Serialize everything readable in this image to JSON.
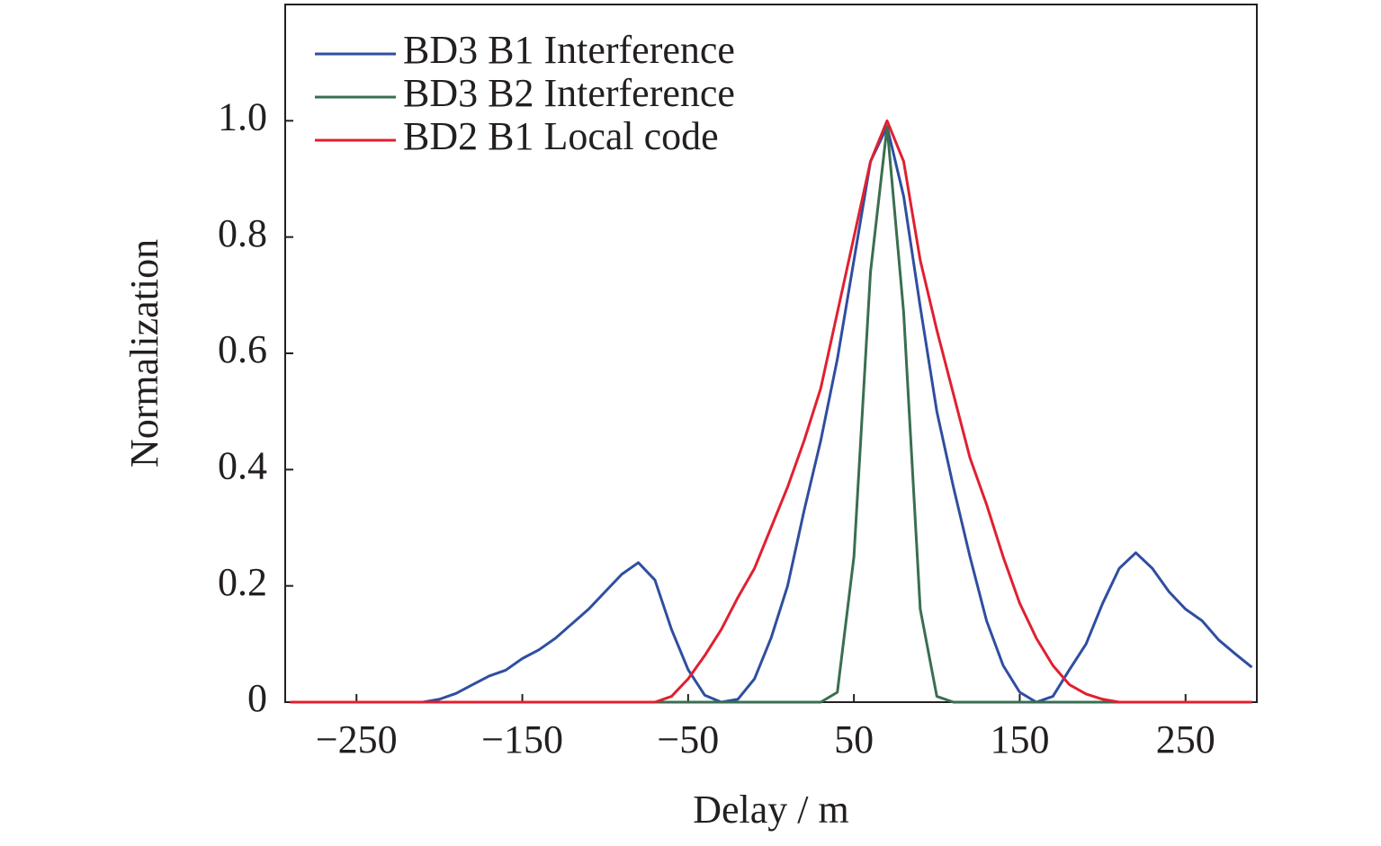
{
  "chart_data": {
    "type": "line",
    "xlabel": "Delay / m",
    "ylabel": "Normalization",
    "x": [
      -290,
      -280,
      -270,
      -260,
      -250,
      -240,
      -230,
      -220,
      -210,
      -200,
      -190,
      -180,
      -170,
      -160,
      -150,
      -140,
      -130,
      -120,
      -110,
      -100,
      -90,
      -80,
      -70,
      -60,
      -50,
      -40,
      -30,
      -20,
      -10,
      0,
      10,
      20,
      30,
      40,
      50,
      60,
      70,
      80,
      90,
      100,
      110,
      120,
      130,
      140,
      150,
      160,
      170,
      180,
      190,
      200,
      210,
      220,
      230,
      240,
      250,
      260,
      270,
      280,
      290
    ],
    "series": [
      {
        "name": "BD3 B1 Interference",
        "color": "#2f4ea0",
        "values": [
          0,
          0,
          0,
          0,
          0,
          0,
          0,
          0,
          0,
          0.005,
          0.015,
          0.03,
          0.045,
          0.055,
          0.075,
          0.09,
          0.11,
          0.135,
          0.16,
          0.19,
          0.22,
          0.24,
          0.21,
          0.125,
          0.056,
          0.012,
          0,
          0.005,
          0.04,
          0.11,
          0.2,
          0.33,
          0.45,
          0.59,
          0.76,
          0.93,
          0.99,
          0.87,
          0.68,
          0.5,
          0.37,
          0.25,
          0.14,
          0.063,
          0.017,
          0,
          0.01,
          0.056,
          0.1,
          0.17,
          0.23,
          0.257,
          0.23,
          0.19,
          0.16,
          0.14,
          0.107,
          0.083,
          0.06
        ]
      },
      {
        "name": "BD3 B2 Interference",
        "color": "#3a6e50",
        "values": [
          0,
          0,
          0,
          0,
          0,
          0,
          0,
          0,
          0,
          0,
          0,
          0,
          0,
          0,
          0,
          0,
          0,
          0,
          0,
          0,
          0,
          0,
          0,
          0,
          0,
          0,
          0,
          0,
          0,
          0,
          0,
          0,
          0,
          0.017,
          0.25,
          0.74,
          0.99,
          0.67,
          0.16,
          0.01,
          0,
          0,
          0,
          0,
          0,
          0,
          0,
          0,
          0,
          0,
          0,
          0,
          0,
          0,
          0,
          0,
          0,
          0,
          0
        ]
      },
      {
        "name": "BD2 B1 Local code",
        "color": "#e02030",
        "values": [
          0,
          0,
          0,
          0,
          0,
          0,
          0,
          0,
          0,
          0,
          0,
          0,
          0,
          0,
          0,
          0,
          0,
          0,
          0,
          0,
          0,
          0,
          0,
          0.01,
          0.04,
          0.08,
          0.125,
          0.18,
          0.23,
          0.3,
          0.37,
          0.45,
          0.54,
          0.67,
          0.8,
          0.93,
          1.0,
          0.93,
          0.76,
          0.64,
          0.53,
          0.42,
          0.34,
          0.25,
          0.17,
          0.11,
          0.063,
          0.03,
          0.014,
          0.005,
          0,
          0,
          0,
          0,
          0,
          0,
          0,
          0,
          0
        ]
      }
    ],
    "xlim": [
      -293,
      293
    ],
    "xticks": [
      {
        "value": -250,
        "label": "−250"
      },
      {
        "value": -150,
        "label": "−150"
      },
      {
        "value": -50,
        "label": "−50"
      },
      50,
      150,
      250
    ],
    "ylim": [
      0,
      1.2
    ],
    "yticks": [
      0,
      0.2,
      0.4,
      0.6,
      0.8,
      {
        "value": 1,
        "label": "1.0"
      }
    ],
    "legend": "upper-left"
  }
}
